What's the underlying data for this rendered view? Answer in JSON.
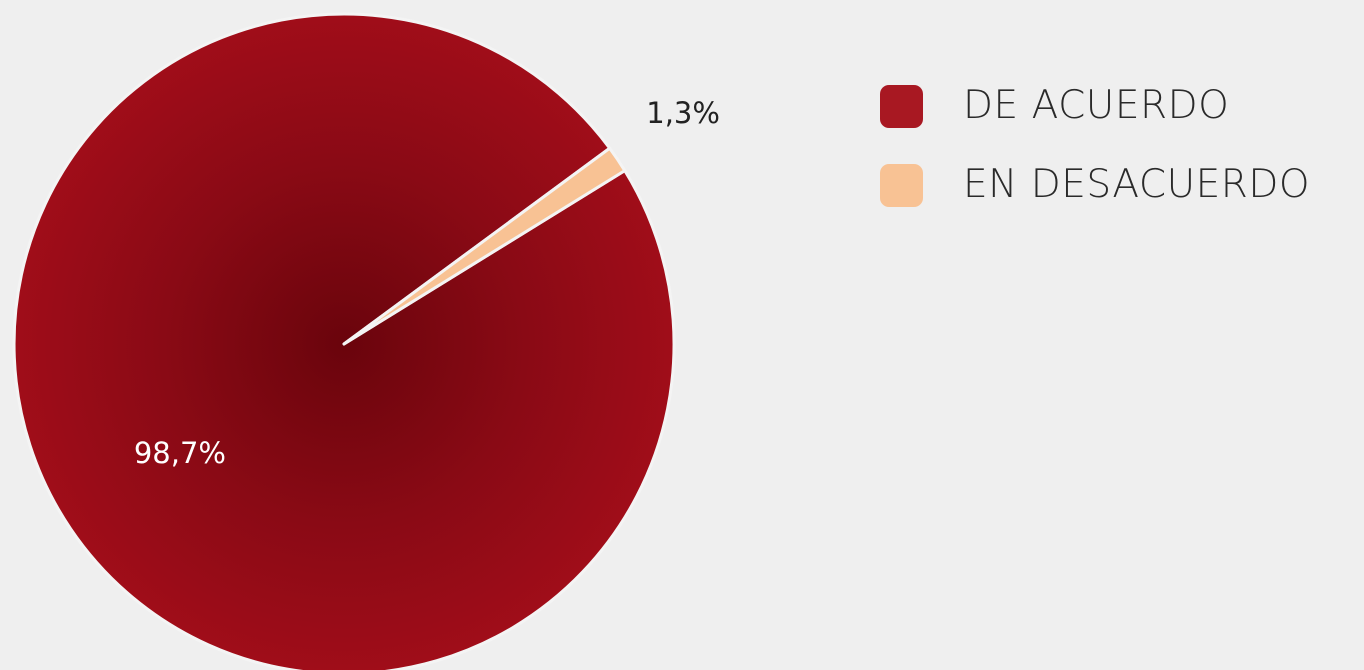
{
  "chart_data": {
    "type": "pie",
    "categories": [
      "DE ACUERDO",
      "EN DESACUERDO"
    ],
    "values": [
      98.7,
      1.3
    ],
    "value_labels": [
      "98,7%",
      "1,3%"
    ],
    "colors": [
      "#9d0d19",
      "#f8c294"
    ],
    "label_colors": [
      "#ffffff",
      "#222222"
    ],
    "legend": {
      "placement": "right",
      "items": [
        {
          "label": "DE ACUERDO",
          "color": "#a81822"
        },
        {
          "label": "EN DESACUERDO",
          "color": "#f8c294"
        }
      ]
    }
  }
}
